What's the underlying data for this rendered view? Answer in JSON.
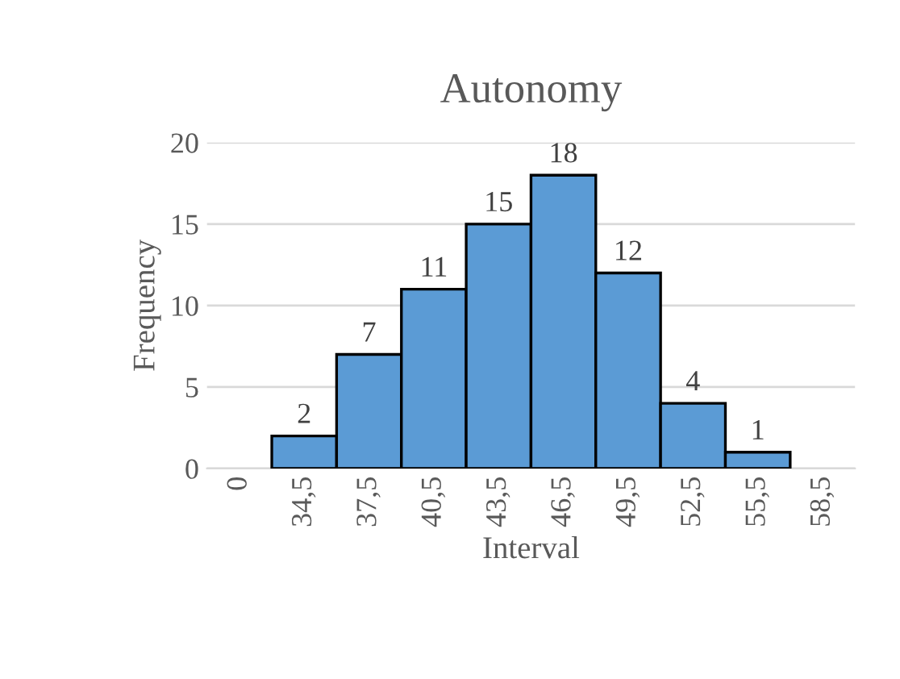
{
  "chart_data": {
    "type": "bar",
    "title": "Autonomy",
    "xlabel": "Interval",
    "ylabel": "Frequency",
    "categories": [
      "0",
      "34,5",
      "37,5",
      "40,5",
      "43,5",
      "46,5",
      "49,5",
      "52,5",
      "55,5",
      "58,5"
    ],
    "values": [
      null,
      2,
      7,
      11,
      15,
      18,
      12,
      4,
      1,
      null
    ],
    "color": "#5b9bd5",
    "ylim": [
      0,
      20
    ],
    "yticks": [
      0,
      5,
      10,
      15,
      20
    ],
    "grid": "y",
    "data_labels": true
  }
}
